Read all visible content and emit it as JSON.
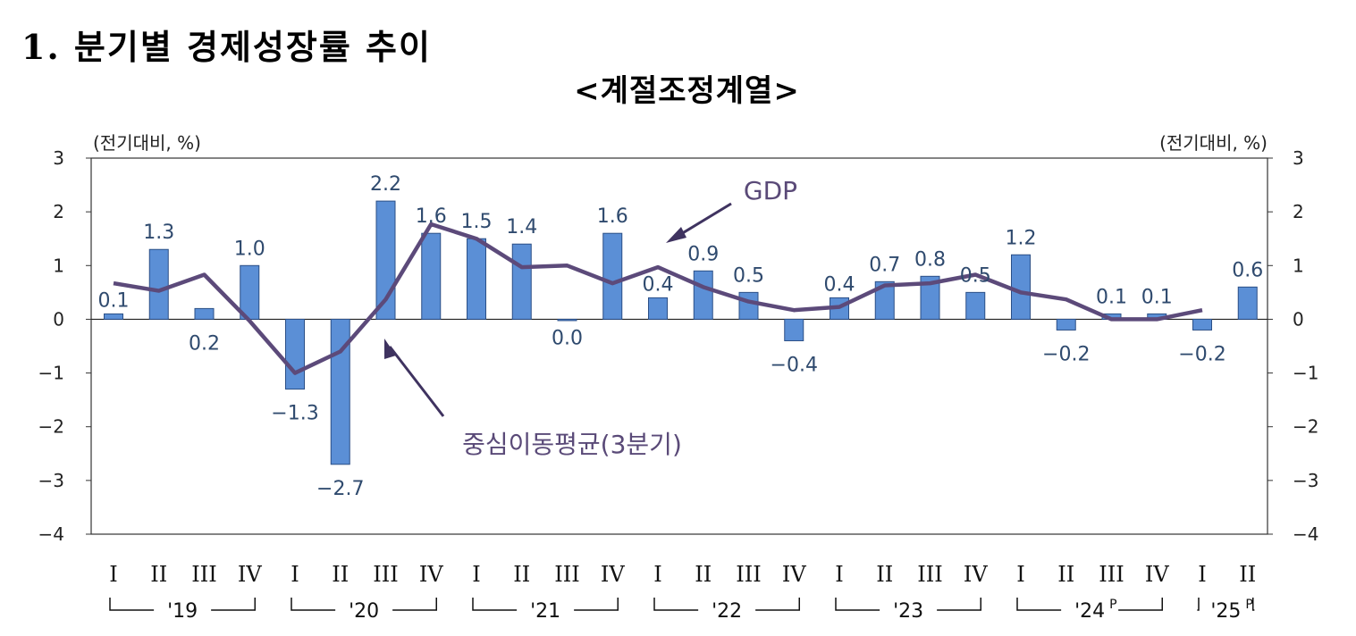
{
  "page": {
    "title": "1. 분기별 경제성장률 추이",
    "subtitle": "<계절조정계열>"
  },
  "chart_data": {
    "type": "bar",
    "title": "1. 분기별 경제성장률 추이",
    "subtitle": "<계절조정계열>",
    "y_unit_left": "(전기대비, %)",
    "y_unit_right": "(전기대비, %)",
    "ylim": [
      -4,
      3
    ],
    "yticks": [
      3,
      2,
      1,
      0,
      -1,
      -2,
      -3,
      -4
    ],
    "ytick_labels": [
      "3",
      "2",
      "1",
      "0",
      "−1",
      "−2",
      "−3",
      "−4"
    ],
    "grid": false,
    "categories": [
      "I",
      "II",
      "III",
      "IV",
      "I",
      "II",
      "III",
      "IV",
      "I",
      "II",
      "III",
      "IV",
      "I",
      "II",
      "III",
      "IV",
      "I",
      "II",
      "III",
      "IV",
      "I",
      "II",
      "III",
      "IV",
      "I",
      "II"
    ],
    "years": [
      {
        "label": "'19",
        "superscript": "",
        "start": 0,
        "end": 3
      },
      {
        "label": "'20",
        "superscript": "",
        "start": 4,
        "end": 7
      },
      {
        "label": "'21",
        "superscript": "",
        "start": 8,
        "end": 11
      },
      {
        "label": "'22",
        "superscript": "",
        "start": 12,
        "end": 15
      },
      {
        "label": "'23",
        "superscript": "",
        "start": 16,
        "end": 19
      },
      {
        "label": "'24",
        "superscript": "P",
        "start": 20,
        "end": 23
      },
      {
        "label": "'25",
        "superscript": "P",
        "start": 24,
        "end": 25
      }
    ],
    "series": [
      {
        "name": "GDP",
        "type": "bar",
        "color": "#5b8fd6",
        "values": [
          0.1,
          1.3,
          0.2,
          1.0,
          -1.3,
          -2.7,
          2.2,
          1.6,
          1.5,
          1.4,
          0.0,
          1.6,
          0.4,
          0.9,
          0.5,
          -0.4,
          0.4,
          0.7,
          0.8,
          0.5,
          1.2,
          -0.2,
          0.1,
          0.1,
          -0.2,
          0.6
        ],
        "labels": [
          "0.1",
          "1.3",
          "0.2",
          "1.0",
          "−1.3",
          "−2.7",
          "2.2",
          "1.6",
          "1.5",
          "1.4",
          "0.0",
          "1.6",
          "0.4",
          "0.9",
          "0.5",
          "−0.4",
          "0.4",
          "0.7",
          "0.8",
          "0.5",
          "1.2",
          "−0.2",
          "0.1",
          "0.1",
          "−0.2",
          "0.6"
        ]
      },
      {
        "name": "중심이동평균(3분기)",
        "type": "line",
        "color": "#5c4a7a",
        "values": [
          0.67,
          0.53,
          0.83,
          -0.03,
          -1.0,
          -0.6,
          0.37,
          1.77,
          1.5,
          0.97,
          1.0,
          0.67,
          0.97,
          0.6,
          0.33,
          0.17,
          0.23,
          0.63,
          0.67,
          0.83,
          0.5,
          0.37,
          0.0,
          0.0,
          0.17,
          null
        ]
      }
    ],
    "annotations": [
      {
        "text": "GDP"
      },
      {
        "text": "중심이동평균(3분기)"
      }
    ]
  }
}
